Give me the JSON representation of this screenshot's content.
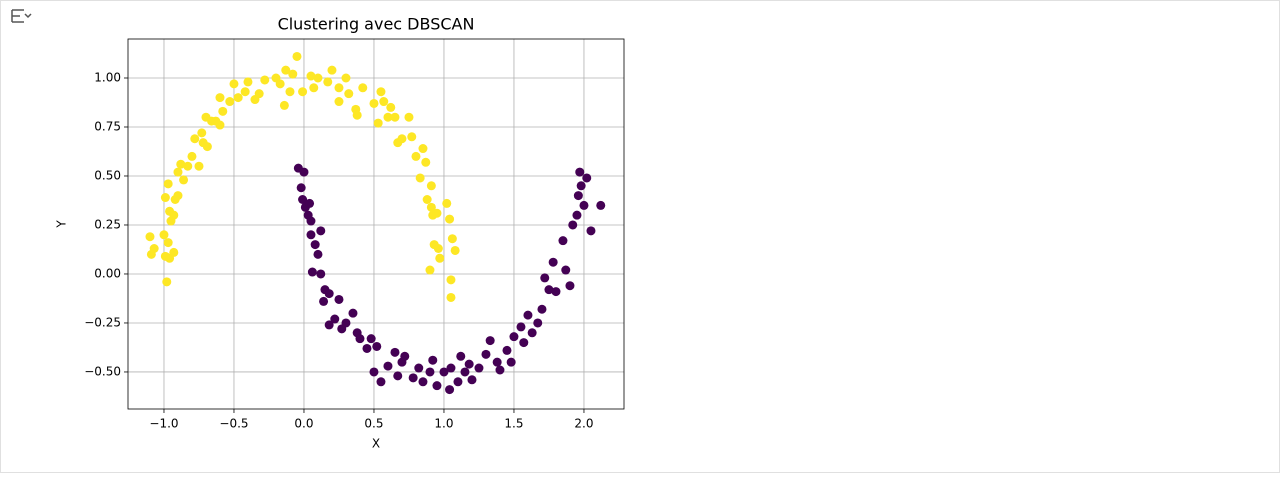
{
  "chart_data": {
    "type": "scatter",
    "title": "Clustering avec DBSCAN",
    "x_label": "X",
    "y_label": "Y",
    "xlim": [
      -1.257,
      2.286
    ],
    "ylim": [
      -0.689,
      1.199
    ],
    "grid": true,
    "xticks": [
      {
        "value": -1,
        "label": "−1.0"
      },
      {
        "value": -0.5,
        "label": "−0.5"
      },
      {
        "value": 0,
        "label": "0.0"
      },
      {
        "value": 0.5,
        "label": "0.5"
      },
      {
        "value": 1,
        "label": "1.0"
      },
      {
        "value": 1.5,
        "label": "1.5"
      },
      {
        "value": 2,
        "label": "2.0"
      }
    ],
    "yticks": [
      {
        "value": -0.5,
        "label": "−0.50"
      },
      {
        "value": -0.25,
        "label": "−0.25"
      },
      {
        "value": 0,
        "label": "0.00"
      },
      {
        "value": 0.25,
        "label": "0.25"
      },
      {
        "value": 0.5,
        "label": "0.50"
      },
      {
        "value": 0.75,
        "label": "0.75"
      },
      {
        "value": 1,
        "label": "1.00"
      }
    ],
    "series": [
      {
        "color": "#fde725",
        "x": [
          -1.1,
          -1.09,
          -1.07,
          -1.0,
          -0.99,
          -0.97,
          -0.98,
          -0.96,
          -0.93,
          -0.99,
          -0.97,
          -0.96,
          -0.95,
          -0.93,
          -0.92,
          -0.9,
          -0.9,
          -0.88,
          -0.86,
          -0.83,
          -0.8,
          -0.78,
          -0.75,
          -0.73,
          -0.72,
          -0.7,
          -0.69,
          -0.66,
          -0.63,
          -0.6,
          -0.6,
          -0.58,
          -0.53,
          -0.5,
          -0.47,
          -0.42,
          -0.4,
          -0.35,
          -0.32,
          -0.28,
          -0.2,
          -0.17,
          -0.14,
          -0.13,
          -0.1,
          -0.08,
          -0.05,
          -0.01,
          0.05,
          0.07,
          0.1,
          0.17,
          0.2,
          0.25,
          0.25,
          0.3,
          0.32,
          0.37,
          0.38,
          0.42,
          0.5,
          0.53,
          0.55,
          0.57,
          0.6,
          0.62,
          0.65,
          0.67,
          0.7,
          0.75,
          0.77,
          0.8,
          0.83,
          0.85,
          0.87,
          0.88,
          0.9,
          0.91,
          0.91,
          0.92,
          0.93,
          0.95,
          0.96,
          0.97,
          1.02,
          1.04,
          1.05,
          1.05,
          1.06,
          1.08
        ],
        "values": [
          0.19,
          0.1,
          0.13,
          0.2,
          0.09,
          0.16,
          -0.04,
          0.08,
          0.11,
          0.39,
          0.46,
          0.32,
          0.27,
          0.3,
          0.38,
          0.4,
          0.52,
          0.56,
          0.48,
          0.55,
          0.6,
          0.69,
          0.55,
          0.72,
          0.67,
          0.8,
          0.65,
          0.78,
          0.78,
          0.76,
          0.9,
          0.83,
          0.88,
          0.97,
          0.9,
          0.93,
          0.98,
          0.89,
          0.92,
          0.99,
          1.0,
          0.97,
          0.86,
          1.04,
          0.93,
          1.02,
          1.11,
          0.93,
          1.01,
          0.95,
          1.0,
          0.98,
          1.04,
          0.95,
          0.88,
          1.0,
          0.92,
          0.84,
          0.81,
          0.95,
          0.87,
          0.77,
          0.93,
          0.88,
          0.8,
          0.85,
          0.8,
          0.67,
          0.69,
          0.8,
          0.7,
          0.6,
          0.49,
          0.64,
          0.57,
          0.38,
          0.02,
          0.45,
          0.34,
          0.3,
          0.15,
          0.31,
          0.13,
          0.08,
          0.36,
          0.28,
          -0.03,
          -0.12,
          0.18,
          0.12
        ]
      },
      {
        "color": "#440154",
        "x": [
          -0.04,
          -0.02,
          -0.01,
          0.0,
          0.01,
          0.03,
          0.04,
          0.05,
          0.05,
          0.06,
          0.08,
          0.1,
          0.12,
          0.12,
          0.15,
          0.14,
          0.18,
          0.18,
          0.22,
          0.25,
          0.27,
          0.3,
          0.35,
          0.38,
          0.4,
          0.45,
          0.48,
          0.5,
          0.52,
          0.55,
          0.6,
          0.65,
          0.67,
          0.7,
          0.72,
          0.78,
          0.82,
          0.85,
          0.9,
          0.92,
          0.95,
          1.0,
          1.04,
          1.05,
          1.1,
          1.12,
          1.15,
          1.18,
          1.2,
          1.25,
          1.3,
          1.33,
          1.38,
          1.4,
          1.45,
          1.48,
          1.5,
          1.55,
          1.57,
          1.6,
          1.63,
          1.67,
          1.7,
          1.72,
          1.75,
          1.78,
          1.8,
          1.85,
          1.87,
          1.9,
          1.92,
          1.95,
          1.96,
          1.97,
          1.98,
          2.0,
          2.02,
          2.05,
          2.12
        ],
        "values": [
          0.54,
          0.44,
          0.38,
          0.52,
          0.34,
          0.3,
          0.36,
          0.27,
          0.2,
          0.01,
          0.15,
          0.1,
          0.22,
          0.0,
          -0.08,
          -0.14,
          -0.1,
          -0.26,
          -0.23,
          -0.13,
          -0.28,
          -0.25,
          -0.2,
          -0.3,
          -0.33,
          -0.38,
          -0.33,
          -0.5,
          -0.37,
          -0.55,
          -0.47,
          -0.4,
          -0.52,
          -0.45,
          -0.42,
          -0.53,
          -0.48,
          -0.55,
          -0.5,
          -0.44,
          -0.57,
          -0.5,
          -0.59,
          -0.48,
          -0.55,
          -0.42,
          -0.5,
          -0.46,
          -0.54,
          -0.48,
          -0.41,
          -0.34,
          -0.45,
          -0.49,
          -0.39,
          -0.45,
          -0.32,
          -0.27,
          -0.35,
          -0.21,
          -0.3,
          -0.25,
          -0.18,
          -0.02,
          -0.08,
          0.06,
          -0.09,
          0.17,
          0.02,
          -0.06,
          0.25,
          0.3,
          0.4,
          0.52,
          0.45,
          0.35,
          0.49,
          0.22,
          0.35
        ]
      }
    ]
  }
}
